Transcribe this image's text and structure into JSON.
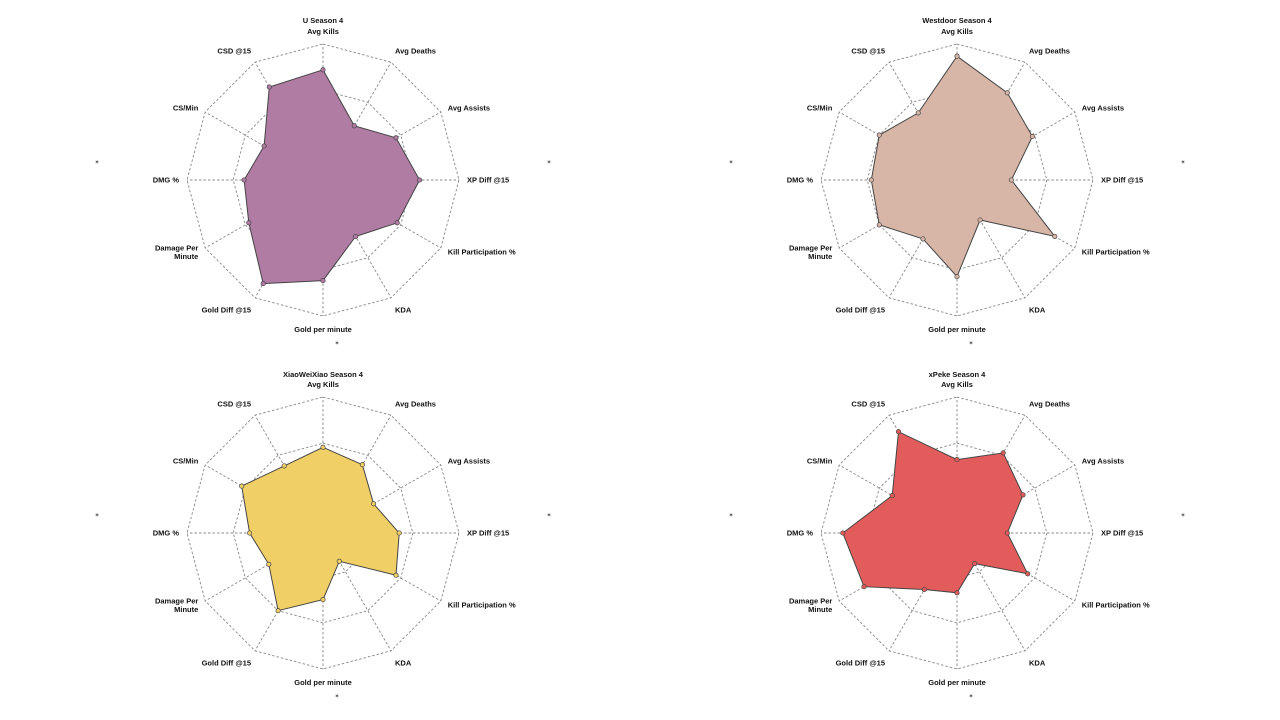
{
  "chart_data": [
    {
      "type": "radar",
      "title": "U Season 4",
      "color": "#b07ca4",
      "categories": [
        "Avg Kills",
        "Avg Deaths",
        "Avg Assists",
        "XP Diff @15",
        "Kill Participation %",
        "KDA",
        "Gold per minute",
        "Gold Diff @15",
        "Damage Per Minute",
        "DMG %",
        "CS/Min",
        "CSD @15"
      ],
      "values": [
        0.81,
        0.46,
        0.62,
        0.71,
        0.63,
        0.48,
        0.74,
        0.88,
        0.63,
        0.58,
        0.5,
        0.79
      ],
      "rlim": [
        0,
        1
      ]
    },
    {
      "type": "radar",
      "title": "Westdoor Season 4",
      "color": "#d7b6a8",
      "categories": [
        "Avg Kills",
        "Avg Deaths",
        "Avg Assists",
        "XP Diff @15",
        "Kill Participation %",
        "KDA",
        "Gold per minute",
        "Gold Diff @15",
        "Damage Per Minute",
        "DMG %",
        "CS/Min",
        "CSD @15"
      ],
      "values": [
        0.91,
        0.74,
        0.64,
        0.4,
        0.83,
        0.34,
        0.71,
        0.5,
        0.66,
        0.63,
        0.66,
        0.57
      ],
      "rlim": [
        0,
        1
      ]
    },
    {
      "type": "radar",
      "title": "XiaoWeiXiao Season 4",
      "color": "#f0cf66",
      "categories": [
        "Avg Kills",
        "Avg Deaths",
        "Avg Assists",
        "XP Diff @15",
        "Kill Participation %",
        "KDA",
        "Gold per minute",
        "Gold Diff @15",
        "Damage Per Minute",
        "DMG %",
        "CS/Min",
        "CSD @15"
      ],
      "values": [
        0.63,
        0.58,
        0.43,
        0.56,
        0.62,
        0.24,
        0.49,
        0.66,
        0.46,
        0.54,
        0.69,
        0.57
      ],
      "rlim": [
        0,
        1
      ]
    },
    {
      "type": "radar",
      "title": "xPeke Season 4",
      "color": "#e35c5c",
      "categories": [
        "Avg Kills",
        "Avg Deaths",
        "Avg Assists",
        "XP Diff @15",
        "Kill Participation %",
        "KDA",
        "Gold per minute",
        "Gold Diff @15",
        "Damage Per Minute",
        "DMG %",
        "CS/Min",
        "CSD @15"
      ],
      "values": [
        0.54,
        0.68,
        0.56,
        0.37,
        0.6,
        0.26,
        0.44,
        0.48,
        0.79,
        0.84,
        0.55,
        0.86
      ],
      "rlim": [
        0,
        1
      ]
    }
  ]
}
